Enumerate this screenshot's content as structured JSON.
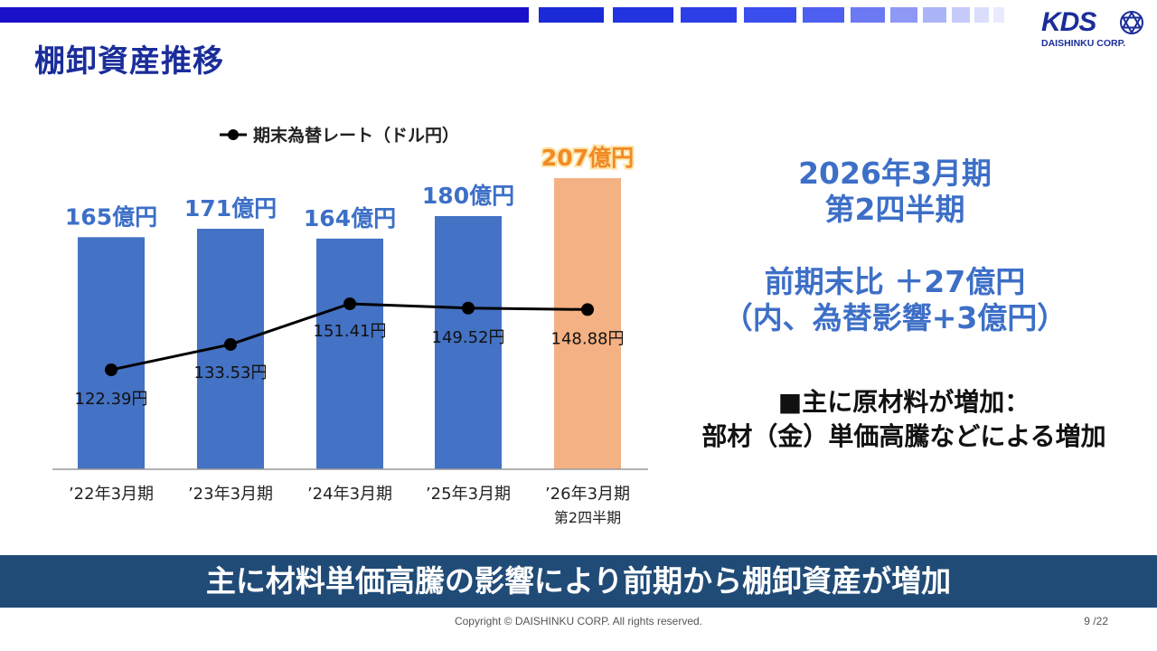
{
  "header": {
    "title": "棚卸資産推移",
    "logo_text": "KDS",
    "logo_subtext": "DAISHINKU CORP."
  },
  "chart_data": {
    "type": "bar",
    "categories": [
      "’22年3月期",
      "’23年3月期",
      "’24年3月期",
      "’25年3月期",
      "’26年3月期\n第2四半期"
    ],
    "series": [
      {
        "values": [
          165,
          171,
          164,
          180,
          207
        ],
        "labels": [
          "165億円",
          "171億円",
          "164億円",
          "180億円",
          "207億円"
        ],
        "colors": [
          "#4472c4",
          "#4472c4",
          "#4472c4",
          "#4472c4",
          "#f4b183"
        ]
      },
      {
        "name": "期末為替レート（ドル円）",
        "type": "line",
        "values": [
          122.39,
          133.53,
          151.41,
          149.52,
          148.88
        ],
        "labels": [
          "122.39円",
          "133.53円",
          "151.41円",
          "149.52円",
          "148.88円"
        ],
        "color": "#000000"
      }
    ],
    "colors": {
      "bar": "#4472c4",
      "highlight": "#f4b183",
      "highlight_label": "#f08a24",
      "bar_label": "#3d6fc7",
      "line": "#000000"
    }
  },
  "right_panel": {
    "period_line1": "2026年3月期",
    "period_line2": "第2四半期",
    "diff_line1": "前期末比 ＋27億円",
    "diff_line2": "（内、為替影響+3億円）",
    "note_line1": "■主に原材料が増加：",
    "note_line2": "部材（金）単価高騰などによる増加"
  },
  "banner": {
    "text": "主に材料単価高騰の影響により前期から棚卸資産が増加"
  },
  "footer": {
    "copyright": "Copyright © DAISHINKU CORP. All rights reserved.",
    "page": "9 /22"
  }
}
